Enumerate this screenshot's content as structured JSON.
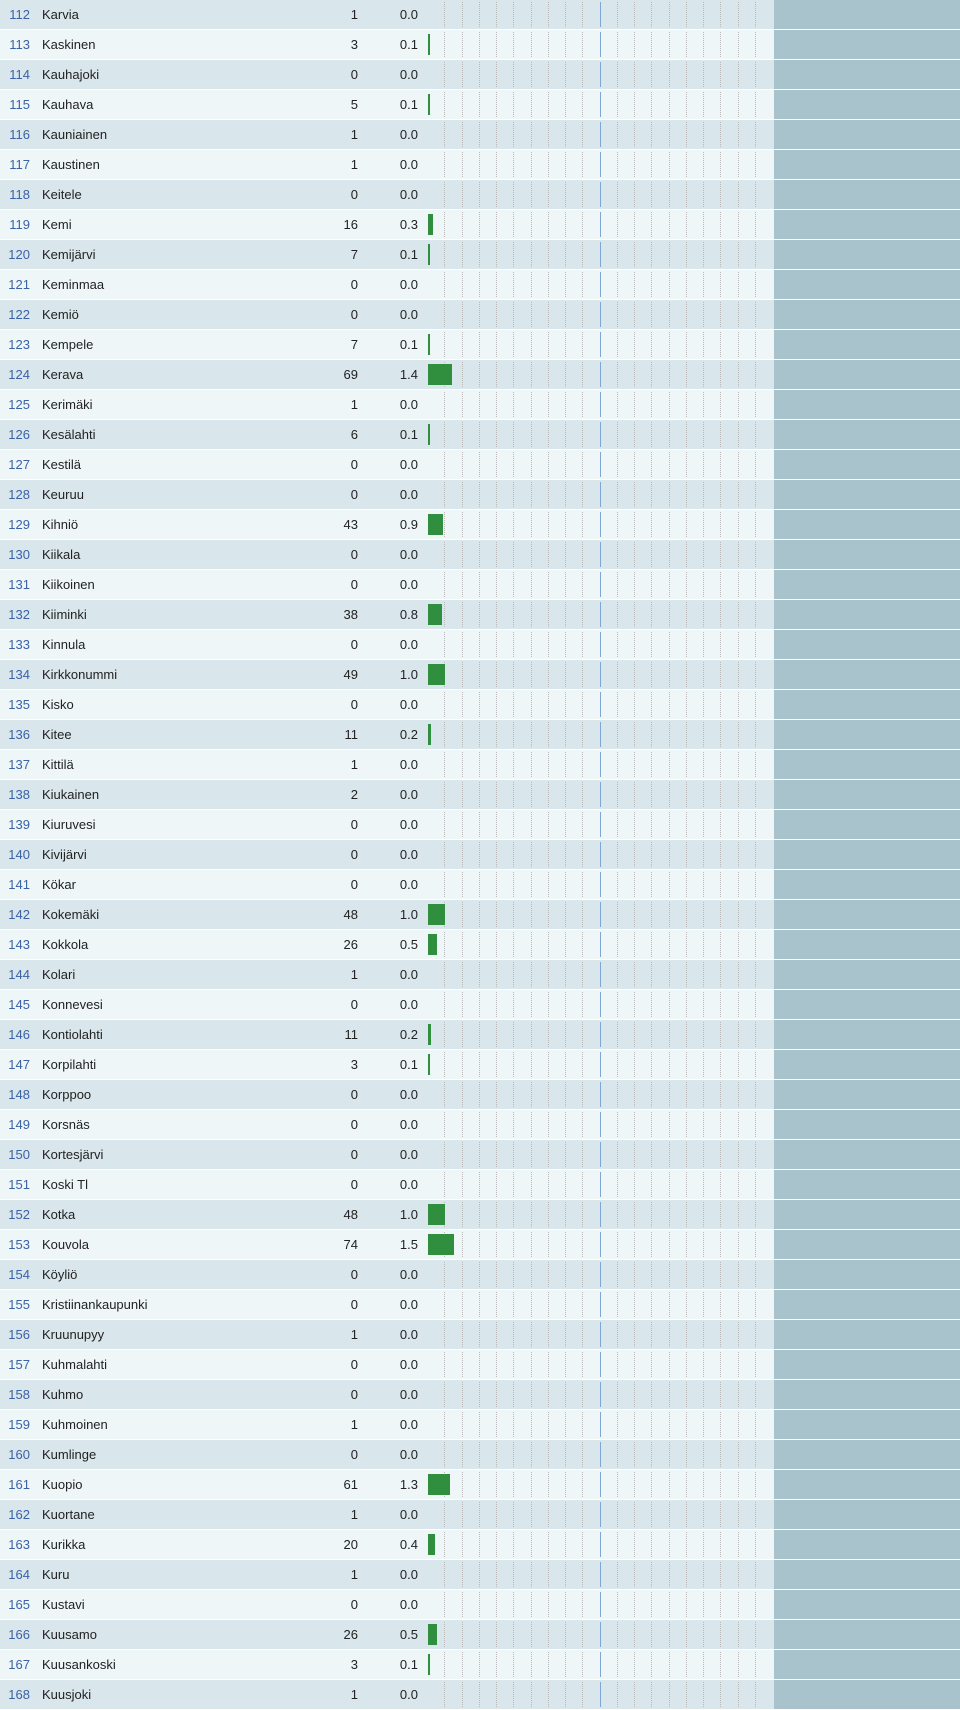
{
  "chart": {
    "max_pct": 20.0,
    "n_cols": 20,
    "midline_at_col": 10,
    "grid_color": "#b8b8b8",
    "midline_color": "#7fa7d6",
    "bar_color": "#2f8f3f",
    "bg_even": "#d9e6ec",
    "bg_odd": "#eef6f8",
    "tail_bg": "#a9c3cd",
    "rank_color": "#3a62a6"
  },
  "rows": [
    {
      "rank": 112,
      "name": "Karvia",
      "count": 1,
      "pct": "0.0",
      "pct_num": 0.0
    },
    {
      "rank": 113,
      "name": "Kaskinen",
      "count": 3,
      "pct": "0.1",
      "pct_num": 0.1
    },
    {
      "rank": 114,
      "name": "Kauhajoki",
      "count": 0,
      "pct": "0.0",
      "pct_num": 0.0
    },
    {
      "rank": 115,
      "name": "Kauhava",
      "count": 5,
      "pct": "0.1",
      "pct_num": 0.1
    },
    {
      "rank": 116,
      "name": "Kauniainen",
      "count": 1,
      "pct": "0.0",
      "pct_num": 0.0
    },
    {
      "rank": 117,
      "name": "Kaustinen",
      "count": 1,
      "pct": "0.0",
      "pct_num": 0.0
    },
    {
      "rank": 118,
      "name": "Keitele",
      "count": 0,
      "pct": "0.0",
      "pct_num": 0.0
    },
    {
      "rank": 119,
      "name": "Kemi",
      "count": 16,
      "pct": "0.3",
      "pct_num": 0.3
    },
    {
      "rank": 120,
      "name": "Kemijärvi",
      "count": 7,
      "pct": "0.1",
      "pct_num": 0.1
    },
    {
      "rank": 121,
      "name": "Keminmaa",
      "count": 0,
      "pct": "0.0",
      "pct_num": 0.0
    },
    {
      "rank": 122,
      "name": "Kemiö",
      "count": 0,
      "pct": "0.0",
      "pct_num": 0.0
    },
    {
      "rank": 123,
      "name": "Kempele",
      "count": 7,
      "pct": "0.1",
      "pct_num": 0.1
    },
    {
      "rank": 124,
      "name": "Kerava",
      "count": 69,
      "pct": "1.4",
      "pct_num": 1.4
    },
    {
      "rank": 125,
      "name": "Kerimäki",
      "count": 1,
      "pct": "0.0",
      "pct_num": 0.0
    },
    {
      "rank": 126,
      "name": "Kesälahti",
      "count": 6,
      "pct": "0.1",
      "pct_num": 0.1
    },
    {
      "rank": 127,
      "name": "Kestilä",
      "count": 0,
      "pct": "0.0",
      "pct_num": 0.0
    },
    {
      "rank": 128,
      "name": "Keuruu",
      "count": 0,
      "pct": "0.0",
      "pct_num": 0.0
    },
    {
      "rank": 129,
      "name": "Kihniö",
      "count": 43,
      "pct": "0.9",
      "pct_num": 0.9
    },
    {
      "rank": 130,
      "name": "Kiikala",
      "count": 0,
      "pct": "0.0",
      "pct_num": 0.0
    },
    {
      "rank": 131,
      "name": "Kiikoinen",
      "count": 0,
      "pct": "0.0",
      "pct_num": 0.0
    },
    {
      "rank": 132,
      "name": "Kiiminki",
      "count": 38,
      "pct": "0.8",
      "pct_num": 0.8
    },
    {
      "rank": 133,
      "name": "Kinnula",
      "count": 0,
      "pct": "0.0",
      "pct_num": 0.0
    },
    {
      "rank": 134,
      "name": "Kirkkonummi",
      "count": 49,
      "pct": "1.0",
      "pct_num": 1.0
    },
    {
      "rank": 135,
      "name": "Kisko",
      "count": 0,
      "pct": "0.0",
      "pct_num": 0.0
    },
    {
      "rank": 136,
      "name": "Kitee",
      "count": 11,
      "pct": "0.2",
      "pct_num": 0.2
    },
    {
      "rank": 137,
      "name": "Kittilä",
      "count": 1,
      "pct": "0.0",
      "pct_num": 0.0
    },
    {
      "rank": 138,
      "name": "Kiukainen",
      "count": 2,
      "pct": "0.0",
      "pct_num": 0.0
    },
    {
      "rank": 139,
      "name": "Kiuruvesi",
      "count": 0,
      "pct": "0.0",
      "pct_num": 0.0
    },
    {
      "rank": 140,
      "name": "Kivijärvi",
      "count": 0,
      "pct": "0.0",
      "pct_num": 0.0
    },
    {
      "rank": 141,
      "name": "Kökar",
      "count": 0,
      "pct": "0.0",
      "pct_num": 0.0
    },
    {
      "rank": 142,
      "name": "Kokemäki",
      "count": 48,
      "pct": "1.0",
      "pct_num": 1.0
    },
    {
      "rank": 143,
      "name": "Kokkola",
      "count": 26,
      "pct": "0.5",
      "pct_num": 0.5
    },
    {
      "rank": 144,
      "name": "Kolari",
      "count": 1,
      "pct": "0.0",
      "pct_num": 0.0
    },
    {
      "rank": 145,
      "name": "Konnevesi",
      "count": 0,
      "pct": "0.0",
      "pct_num": 0.0
    },
    {
      "rank": 146,
      "name": "Kontiolahti",
      "count": 11,
      "pct": "0.2",
      "pct_num": 0.2
    },
    {
      "rank": 147,
      "name": "Korpilahti",
      "count": 3,
      "pct": "0.1",
      "pct_num": 0.1
    },
    {
      "rank": 148,
      "name": "Korppoo",
      "count": 0,
      "pct": "0.0",
      "pct_num": 0.0
    },
    {
      "rank": 149,
      "name": "Korsnäs",
      "count": 0,
      "pct": "0.0",
      "pct_num": 0.0
    },
    {
      "rank": 150,
      "name": "Kortesjärvi",
      "count": 0,
      "pct": "0.0",
      "pct_num": 0.0
    },
    {
      "rank": 151,
      "name": "Koski Tl",
      "count": 0,
      "pct": "0.0",
      "pct_num": 0.0
    },
    {
      "rank": 152,
      "name": "Kotka",
      "count": 48,
      "pct": "1.0",
      "pct_num": 1.0
    },
    {
      "rank": 153,
      "name": "Kouvola",
      "count": 74,
      "pct": "1.5",
      "pct_num": 1.5
    },
    {
      "rank": 154,
      "name": "Köyliö",
      "count": 0,
      "pct": "0.0",
      "pct_num": 0.0
    },
    {
      "rank": 155,
      "name": "Kristiinankaupunki",
      "count": 0,
      "pct": "0.0",
      "pct_num": 0.0
    },
    {
      "rank": 156,
      "name": "Kruunupyy",
      "count": 1,
      "pct": "0.0",
      "pct_num": 0.0
    },
    {
      "rank": 157,
      "name": "Kuhmalahti",
      "count": 0,
      "pct": "0.0",
      "pct_num": 0.0
    },
    {
      "rank": 158,
      "name": "Kuhmo",
      "count": 0,
      "pct": "0.0",
      "pct_num": 0.0
    },
    {
      "rank": 159,
      "name": "Kuhmoinen",
      "count": 1,
      "pct": "0.0",
      "pct_num": 0.0
    },
    {
      "rank": 160,
      "name": "Kumlinge",
      "count": 0,
      "pct": "0.0",
      "pct_num": 0.0
    },
    {
      "rank": 161,
      "name": "Kuopio",
      "count": 61,
      "pct": "1.3",
      "pct_num": 1.3
    },
    {
      "rank": 162,
      "name": "Kuortane",
      "count": 1,
      "pct": "0.0",
      "pct_num": 0.0
    },
    {
      "rank": 163,
      "name": "Kurikka",
      "count": 20,
      "pct": "0.4",
      "pct_num": 0.4
    },
    {
      "rank": 164,
      "name": "Kuru",
      "count": 1,
      "pct": "0.0",
      "pct_num": 0.0
    },
    {
      "rank": 165,
      "name": "Kustavi",
      "count": 0,
      "pct": "0.0",
      "pct_num": 0.0
    },
    {
      "rank": 166,
      "name": "Kuusamo",
      "count": 26,
      "pct": "0.5",
      "pct_num": 0.5
    },
    {
      "rank": 167,
      "name": "Kuusankoski",
      "count": 3,
      "pct": "0.1",
      "pct_num": 0.1
    },
    {
      "rank": 168,
      "name": "Kuusjoki",
      "count": 1,
      "pct": "0.0",
      "pct_num": 0.0
    }
  ]
}
